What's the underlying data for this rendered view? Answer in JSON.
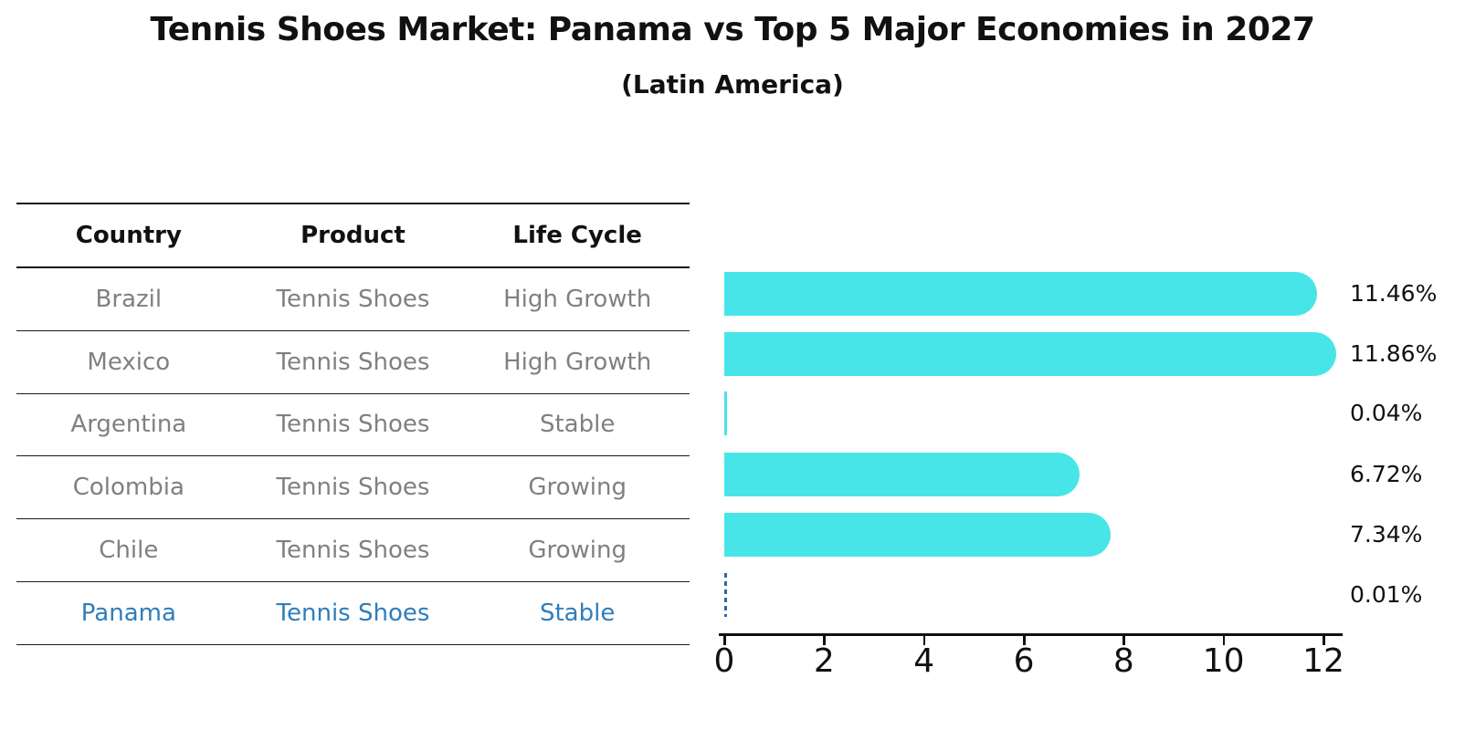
{
  "title": "Tennis Shoes Market: Panama vs Top 5 Major Economies in 2027",
  "subtitle": "(Latin America)",
  "table": {
    "headers": [
      "Country",
      "Product",
      "Life Cycle"
    ],
    "rows": [
      {
        "country": "Brazil",
        "product": "Tennis Shoes",
        "life_cycle": "High Growth",
        "highlight": false
      },
      {
        "country": "Mexico",
        "product": "Tennis Shoes",
        "life_cycle": "High Growth",
        "highlight": false
      },
      {
        "country": "Argentina",
        "product": "Tennis Shoes",
        "life_cycle": "Stable",
        "highlight": false
      },
      {
        "country": "Colombia",
        "product": "Tennis Shoes",
        "life_cycle": "Growing",
        "highlight": false
      },
      {
        "country": "Chile",
        "product": "Tennis Shoes",
        "life_cycle": "Growing",
        "highlight": true
      }
    ],
    "highlight_row": {
      "country": "Panama",
      "product": "Tennis Shoes",
      "life_cycle": "Stable"
    }
  },
  "chart_data": {
    "type": "bar",
    "orientation": "horizontal",
    "title": "Tennis Shoes Market: Panama vs Top 5 Major Economies in 2027",
    "subtitle": "(Latin America)",
    "categories": [
      "Brazil",
      "Mexico",
      "Argentina",
      "Colombia",
      "Chile",
      "Panama"
    ],
    "values": [
      11.46,
      11.86,
      0.04,
      6.72,
      7.34,
      0.01
    ],
    "value_labels": [
      "11.46%",
      "11.86%",
      "0.04%",
      "6.72%",
      "7.34%",
      "0.01%"
    ],
    "xlabel": "",
    "ylabel": "",
    "xlim": [
      0,
      12.3
    ],
    "xticks": [
      0,
      2,
      4,
      6,
      8,
      10,
      12
    ],
    "grid": false,
    "legend": false,
    "bar_color": "#48E5E8",
    "highlight_index": 5,
    "highlight_style": "dashed-blue-outline",
    "highlight_color": "#33689E",
    "highlight_text_color": "#2E7EBC"
  },
  "colors": {
    "background": "#ffffff",
    "bar_cyan": "#48E5E8",
    "panama_blue": "#2E7EBC",
    "dashed_blue": "#33689E",
    "table_text_gray": "#808080",
    "text_black": "#111111"
  }
}
